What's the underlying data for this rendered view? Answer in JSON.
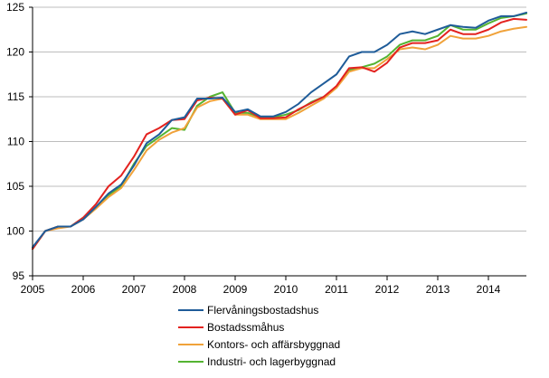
{
  "chart_data": {
    "type": "line",
    "x_range": [
      2005.0,
      2014.75
    ],
    "xticks": [
      2005,
      2006,
      2007,
      2008,
      2009,
      2010,
      2011,
      2012,
      2013,
      2014
    ],
    "xtick_labels": [
      "2005",
      "2006",
      "2007",
      "2008",
      "2009",
      "2010",
      "2011",
      "2012",
      "2013",
      "2014"
    ],
    "ylim": [
      95,
      125
    ],
    "yticks": [
      95,
      100,
      105,
      110,
      115,
      120,
      125
    ],
    "ytick_labels": [
      "95",
      "100",
      "105",
      "110",
      "115",
      "120",
      "125"
    ],
    "grid": "horizontal",
    "legend_position": "bottom",
    "series": [
      {
        "name": "Flervåningsbostadshus",
        "color": "#1f5c99",
        "x": [
          2005.0,
          2005.25,
          2005.5,
          2005.75,
          2006.0,
          2006.25,
          2006.5,
          2006.75,
          2007.0,
          2007.25,
          2007.5,
          2007.75,
          2008.0,
          2008.25,
          2008.5,
          2008.75,
          2009.0,
          2009.25,
          2009.5,
          2009.75,
          2010.0,
          2010.25,
          2010.5,
          2010.75,
          2011.0,
          2011.25,
          2011.5,
          2011.75,
          2012.0,
          2012.25,
          2012.5,
          2012.75,
          2013.0,
          2013.25,
          2013.5,
          2013.75,
          2014.0,
          2014.25,
          2014.5,
          2014.75
        ],
        "y": [
          98.2,
          100.0,
          100.5,
          100.5,
          101.3,
          102.7,
          104.2,
          105.2,
          107.3,
          109.8,
          110.8,
          112.4,
          112.7,
          114.8,
          114.8,
          114.9,
          113.3,
          113.6,
          112.8,
          112.8,
          113.3,
          114.2,
          115.5,
          116.5,
          117.5,
          119.5,
          120.0,
          120.0,
          120.8,
          122.0,
          122.3,
          122.0,
          122.5,
          123.0,
          122.8,
          122.7,
          123.5,
          124.0,
          124.0,
          124.4
        ]
      },
      {
        "name": "Bostadssmåhus",
        "color": "#e3221f",
        "x": [
          2005.0,
          2005.25,
          2005.5,
          2005.75,
          2006.0,
          2006.25,
          2006.5,
          2006.75,
          2007.0,
          2007.25,
          2007.5,
          2007.75,
          2008.0,
          2008.25,
          2008.5,
          2008.75,
          2009.0,
          2009.25,
          2009.5,
          2009.75,
          2010.0,
          2010.25,
          2010.5,
          2010.75,
          2011.0,
          2011.25,
          2011.5,
          2011.75,
          2012.0,
          2012.25,
          2012.5,
          2012.75,
          2013.0,
          2013.25,
          2013.5,
          2013.75,
          2014.0,
          2014.25,
          2014.5,
          2014.75
        ],
        "y": [
          98.0,
          100.0,
          100.5,
          100.5,
          101.5,
          103.0,
          105.0,
          106.2,
          108.3,
          110.8,
          111.5,
          112.4,
          112.5,
          114.6,
          114.9,
          114.8,
          113.0,
          113.5,
          112.6,
          112.6,
          112.7,
          113.6,
          114.3,
          115.0,
          116.2,
          118.2,
          118.3,
          117.8,
          118.8,
          120.5,
          121.0,
          121.0,
          121.3,
          122.5,
          122.0,
          122.0,
          122.5,
          123.3,
          123.7,
          123.6
        ]
      },
      {
        "name": "Kontors- och affärsbyggnad",
        "color": "#f0a23a",
        "x": [
          2005.0,
          2005.25,
          2005.5,
          2005.75,
          2006.0,
          2006.25,
          2006.5,
          2006.75,
          2007.0,
          2007.25,
          2007.5,
          2007.75,
          2008.0,
          2008.25,
          2008.5,
          2008.75,
          2009.0,
          2009.25,
          2009.5,
          2009.75,
          2010.0,
          2010.25,
          2010.5,
          2010.75,
          2011.0,
          2011.25,
          2011.5,
          2011.75,
          2012.0,
          2012.25,
          2012.5,
          2012.75,
          2013.0,
          2013.25,
          2013.5,
          2013.75,
          2014.0,
          2014.25,
          2014.5,
          2014.75
        ],
        "y": [
          98.0,
          100.0,
          100.3,
          100.5,
          101.3,
          102.5,
          103.8,
          104.8,
          106.8,
          109.0,
          110.2,
          111.0,
          111.5,
          113.8,
          114.5,
          114.8,
          113.0,
          113.0,
          112.5,
          112.5,
          112.5,
          113.2,
          114.0,
          114.8,
          116.0,
          117.8,
          118.2,
          118.2,
          119.2,
          120.3,
          120.5,
          120.3,
          120.8,
          121.8,
          121.5,
          121.5,
          121.8,
          122.3,
          122.6,
          122.8
        ]
      },
      {
        "name": "Industri- och lagerbyggnad",
        "color": "#55b432",
        "x": [
          2005.0,
          2005.25,
          2005.5,
          2005.75,
          2006.0,
          2006.25,
          2006.5,
          2006.75,
          2007.0,
          2007.25,
          2007.5,
          2007.75,
          2008.0,
          2008.25,
          2008.5,
          2008.75,
          2009.0,
          2009.25,
          2009.5,
          2009.75,
          2010.0,
          2010.25,
          2010.5,
          2010.75,
          2011.0,
          2011.25,
          2011.5,
          2011.75,
          2012.0,
          2012.25,
          2012.5,
          2012.75,
          2013.0,
          2013.25,
          2013.5,
          2013.75,
          2014.0,
          2014.25,
          2014.5,
          2014.75
        ],
        "y": [
          98.0,
          100.0,
          100.5,
          100.5,
          101.5,
          102.6,
          104.0,
          105.0,
          107.5,
          109.5,
          110.5,
          111.5,
          111.3,
          114.0,
          115.0,
          115.5,
          113.2,
          113.2,
          112.7,
          112.7,
          113.0,
          113.5,
          114.4,
          115.0,
          116.0,
          118.0,
          118.3,
          118.7,
          119.5,
          120.8,
          121.3,
          121.3,
          121.8,
          123.0,
          122.5,
          122.5,
          123.2,
          123.8,
          124.0,
          124.3
        ]
      }
    ]
  }
}
